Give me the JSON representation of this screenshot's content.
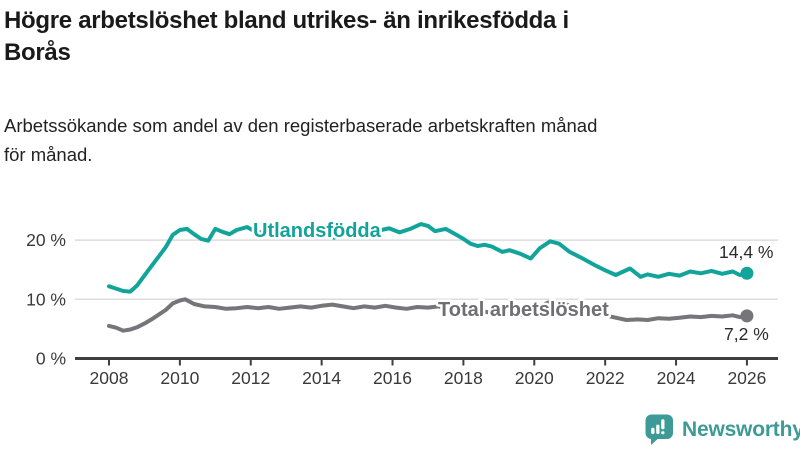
{
  "header": {
    "title_lines": [
      "Högre arbetslöshet bland utrikes- än inrikesfödda i",
      "Borås"
    ],
    "subtitle_lines": [
      "Arbetssökande som andel av den registerbaserade arbetskraften månad",
      "för månad."
    ]
  },
  "footer": {
    "brand": "Newsworthy",
    "brand_color": "#3e9a94"
  },
  "chart_data": {
    "type": "line",
    "title": "Högre arbetslöshet bland utrikes- än inrikesfödda i Borås",
    "subtitle": "Arbetssökande som andel av den registerbaserade arbetskraften månad för månad.",
    "xlabel": "",
    "ylabel": "",
    "xlim": [
      2007.6,
      2026.9
    ],
    "ylim": [
      0,
      24
    ],
    "grid": "horizontal",
    "legend_position": "inline-labels",
    "x_ticks": [
      2008,
      2010,
      2012,
      2014,
      2016,
      2018,
      2020,
      2022,
      2024,
      2026
    ],
    "y_ticks": [
      {
        "value": 0,
        "label": "0 %"
      },
      {
        "value": 10,
        "label": "10 %"
      },
      {
        "value": 20,
        "label": "20 %"
      }
    ],
    "colors": {
      "gridline": "#dcdcdc",
      "axis": "#3f3f3f",
      "tick_text": "#3a3a3a"
    },
    "series": [
      {
        "name": "Utlandsfödda",
        "color": "#12a49a",
        "end_value": 14.4,
        "end_label": "14,4 %",
        "points": [
          [
            2008.0,
            12.2
          ],
          [
            2008.2,
            11.8
          ],
          [
            2008.4,
            11.4
          ],
          [
            2008.6,
            11.3
          ],
          [
            2008.8,
            12.4
          ],
          [
            2009.0,
            14.0
          ],
          [
            2009.2,
            15.6
          ],
          [
            2009.4,
            17.2
          ],
          [
            2009.6,
            18.8
          ],
          [
            2009.8,
            20.9
          ],
          [
            2010.0,
            21.7
          ],
          [
            2010.2,
            21.9
          ],
          [
            2010.4,
            21.0
          ],
          [
            2010.6,
            20.2
          ],
          [
            2010.8,
            19.9
          ],
          [
            2011.0,
            21.9
          ],
          [
            2011.2,
            21.4
          ],
          [
            2011.4,
            21.0
          ],
          [
            2011.6,
            21.7
          ],
          [
            2011.9,
            22.2
          ],
          [
            2012.1,
            21.5
          ],
          [
            2012.4,
            21.2
          ],
          [
            2012.6,
            21.6
          ],
          [
            2012.9,
            21.1
          ],
          [
            2013.1,
            21.4
          ],
          [
            2013.4,
            21.7
          ],
          [
            2013.6,
            21.3
          ],
          [
            2013.9,
            21.6
          ],
          [
            2014.1,
            21.0
          ],
          [
            2014.35,
            20.4
          ],
          [
            2014.6,
            21.1
          ],
          [
            2014.9,
            22.0
          ],
          [
            2015.1,
            21.6
          ],
          [
            2015.4,
            21.3
          ],
          [
            2015.6,
            21.6
          ],
          [
            2015.9,
            22.0
          ],
          [
            2016.2,
            21.3
          ],
          [
            2016.5,
            21.9
          ],
          [
            2016.8,
            22.7
          ],
          [
            2017.0,
            22.4
          ],
          [
            2017.2,
            21.5
          ],
          [
            2017.5,
            21.9
          ],
          [
            2017.8,
            20.9
          ],
          [
            2018.0,
            20.2
          ],
          [
            2018.2,
            19.4
          ],
          [
            2018.4,
            19.0
          ],
          [
            2018.6,
            19.2
          ],
          [
            2018.8,
            18.9
          ],
          [
            2019.1,
            18.0
          ],
          [
            2019.3,
            18.3
          ],
          [
            2019.6,
            17.7
          ],
          [
            2019.9,
            16.9
          ],
          [
            2020.15,
            18.6
          ],
          [
            2020.45,
            19.8
          ],
          [
            2020.7,
            19.4
          ],
          [
            2021.0,
            18.0
          ],
          [
            2021.3,
            17.1
          ],
          [
            2021.7,
            15.8
          ],
          [
            2022.0,
            14.9
          ],
          [
            2022.3,
            14.1
          ],
          [
            2022.7,
            15.2
          ],
          [
            2023.0,
            13.8
          ],
          [
            2023.2,
            14.2
          ],
          [
            2023.5,
            13.8
          ],
          [
            2023.8,
            14.3
          ],
          [
            2024.1,
            14.0
          ],
          [
            2024.4,
            14.7
          ],
          [
            2024.7,
            14.4
          ],
          [
            2025.0,
            14.8
          ],
          [
            2025.3,
            14.3
          ],
          [
            2025.6,
            14.7
          ],
          [
            2025.8,
            14.1
          ],
          [
            2026.0,
            14.4
          ]
        ]
      },
      {
        "name": "Total arbetslöshet",
        "color": "#75757a",
        "end_value": 7.2,
        "end_label": "7,2 %",
        "points": [
          [
            2008.0,
            5.5
          ],
          [
            2008.2,
            5.2
          ],
          [
            2008.4,
            4.7
          ],
          [
            2008.6,
            4.9
          ],
          [
            2008.8,
            5.3
          ],
          [
            2009.0,
            5.9
          ],
          [
            2009.2,
            6.6
          ],
          [
            2009.4,
            7.4
          ],
          [
            2009.6,
            8.2
          ],
          [
            2009.8,
            9.3
          ],
          [
            2010.0,
            9.8
          ],
          [
            2010.15,
            10.0
          ],
          [
            2010.4,
            9.2
          ],
          [
            2010.7,
            8.8
          ],
          [
            2011.0,
            8.7
          ],
          [
            2011.3,
            8.4
          ],
          [
            2011.6,
            8.5
          ],
          [
            2011.9,
            8.7
          ],
          [
            2012.2,
            8.5
          ],
          [
            2012.5,
            8.7
          ],
          [
            2012.8,
            8.4
          ],
          [
            2013.1,
            8.6
          ],
          [
            2013.4,
            8.8
          ],
          [
            2013.7,
            8.6
          ],
          [
            2014.0,
            8.9
          ],
          [
            2014.3,
            9.1
          ],
          [
            2014.6,
            8.8
          ],
          [
            2014.9,
            8.5
          ],
          [
            2015.2,
            8.8
          ],
          [
            2015.5,
            8.6
          ],
          [
            2015.8,
            8.9
          ],
          [
            2016.1,
            8.6
          ],
          [
            2016.4,
            8.4
          ],
          [
            2016.7,
            8.7
          ],
          [
            2017.0,
            8.6
          ],
          [
            2017.3,
            8.8
          ],
          [
            2017.6,
            8.4
          ],
          [
            2017.9,
            8.2
          ],
          [
            2018.2,
            7.9
          ],
          [
            2018.5,
            8.0
          ],
          [
            2018.8,
            7.7
          ],
          [
            2019.1,
            7.5
          ],
          [
            2019.4,
            7.7
          ],
          [
            2019.7,
            7.3
          ],
          [
            2020.0,
            7.6
          ],
          [
            2020.3,
            9.2
          ],
          [
            2020.5,
            9.7
          ],
          [
            2020.8,
            9.3
          ],
          [
            2021.1,
            8.8
          ],
          [
            2021.4,
            8.3
          ],
          [
            2021.7,
            7.8
          ],
          [
            2022.0,
            7.3
          ],
          [
            2022.3,
            6.9
          ],
          [
            2022.6,
            6.5
          ],
          [
            2022.9,
            6.6
          ],
          [
            2023.2,
            6.5
          ],
          [
            2023.5,
            6.8
          ],
          [
            2023.8,
            6.7
          ],
          [
            2024.1,
            6.9
          ],
          [
            2024.4,
            7.1
          ],
          [
            2024.7,
            7.0
          ],
          [
            2025.0,
            7.2
          ],
          [
            2025.3,
            7.1
          ],
          [
            2025.6,
            7.3
          ],
          [
            2025.8,
            7.0
          ],
          [
            2026.0,
            7.2
          ]
        ]
      }
    ]
  }
}
